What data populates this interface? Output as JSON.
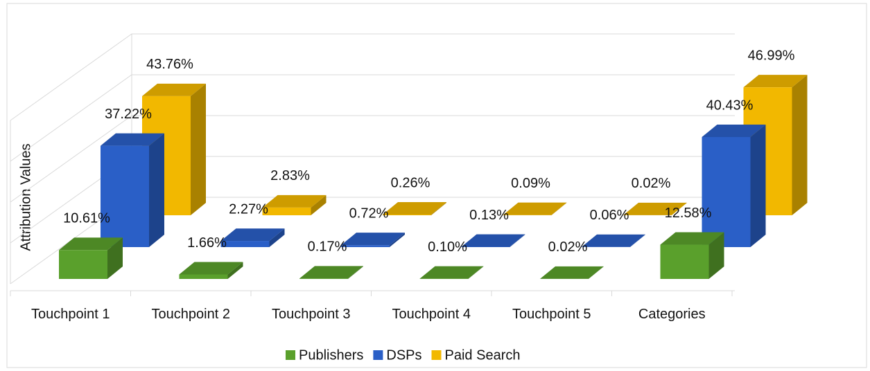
{
  "chart_data": {
    "type": "bar3d",
    "y_label": "Attribution Values",
    "categories": [
      "Touchpoint 1",
      "Touchpoint 2",
      "Touchpoint 3",
      "Touchpoint 4",
      "Touchpoint 5",
      "Categories"
    ],
    "series": [
      {
        "name": "Publishers",
        "color": "#5aa02c",
        "values": [
          10.61,
          1.66,
          0.17,
          0.1,
          0.02,
          12.58
        ],
        "value_labels": [
          "10.61%",
          "1.66%",
          "0.17%",
          "0.10%",
          "0.02%",
          "12.58%"
        ]
      },
      {
        "name": "DSPs",
        "color": "#2a5fc7",
        "values": [
          37.22,
          2.27,
          0.72,
          0.13,
          0.06,
          40.43
        ],
        "value_labels": [
          "37.22%",
          "2.27%",
          "0.72%",
          "0.13%",
          "0.06%",
          "40.43%"
        ]
      },
      {
        "name": "Paid Search",
        "color": "#f2b800",
        "values": [
          43.76,
          2.83,
          0.26,
          0.09,
          0.02,
          46.99
        ],
        "value_labels": [
          "43.76%",
          "2.83%",
          "0.26%",
          "0.09%",
          "0.02%",
          "46.99%"
        ]
      }
    ],
    "ylim": [
      0,
      60
    ],
    "yticks": [
      0,
      15,
      30,
      45,
      60
    ],
    "grid": true,
    "legend": "bottom"
  }
}
